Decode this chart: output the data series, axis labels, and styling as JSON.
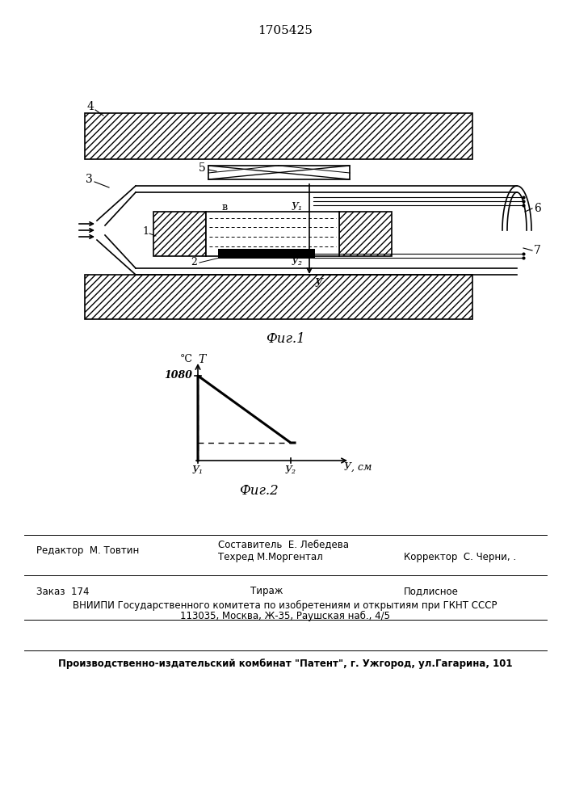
{
  "patent_number": "1705425",
  "fig1_caption": "Фиг.1",
  "fig2_caption": "Фиг.2",
  "bg_color": "#ffffff",
  "line_color": "#000000",
  "footer_line1_left": "Редактор  М. Товтин",
  "footer_line1_center_top": "Составитель  Е. Лебедева",
  "footer_line1_center_bot": "Техред М.Моргентал",
  "footer_line1_right": "Корректор  С. Черни, .",
  "footer_line2_left": "Заказ  174",
  "footer_line2_center": "Тираж",
  "footer_line2_right": "Подлисное",
  "footer_line3": "ВНИИПИ Государственного комитета по изобретениям и открытиям при ГКНТ СССР",
  "footer_line4": "113035, Москва, Ж-35, Раушская наб., 4/5",
  "footer_line5": "Производственно-издательский комбинат \"Патент\", г. Ужгород, ул.Гагарина, 101"
}
